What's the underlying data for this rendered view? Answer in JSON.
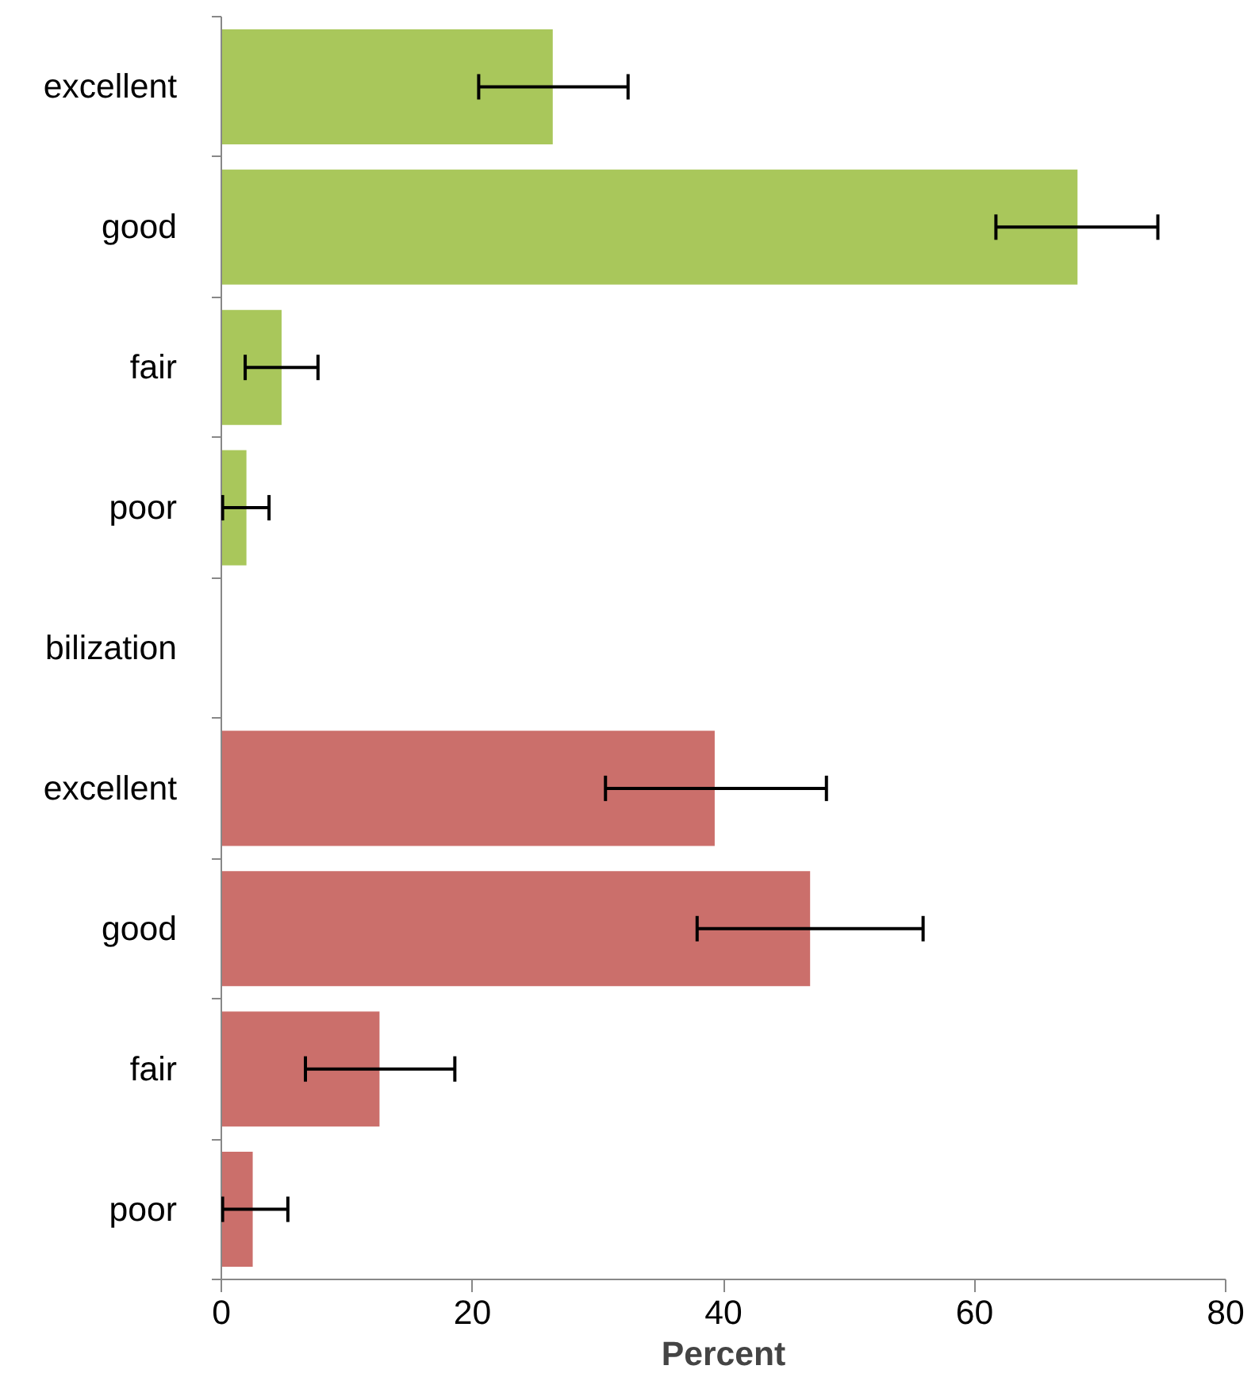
{
  "chart_data": {
    "type": "bar",
    "orientation": "horizontal",
    "xlabel": "Percent",
    "categories": [
      "excellent",
      "good",
      "fair",
      "poor",
      "bilization",
      "excellent",
      "good",
      "fair",
      "poor"
    ],
    "series": [
      {
        "color": "#a9c75b",
        "values": [
          26.4,
          68.2,
          4.8,
          2.0,
          null,
          null,
          null,
          null,
          null
        ],
        "errors": [
          [
            20.5,
            32.4
          ],
          [
            61.7,
            74.6
          ],
          [
            1.9,
            7.7
          ],
          [
            0.1,
            3.8
          ],
          null,
          null,
          null,
          null,
          null
        ]
      },
      {
        "color": "#cb6f6b",
        "values": [
          null,
          null,
          null,
          null,
          null,
          39.3,
          46.9,
          12.6,
          2.5
        ],
        "errors": [
          null,
          null,
          null,
          null,
          null,
          [
            30.6,
            48.2
          ],
          [
            37.9,
            55.9
          ],
          [
            6.7,
            18.6
          ],
          [
            0.1,
            5.3
          ]
        ]
      }
    ],
    "xlim": [
      0,
      80
    ],
    "xticks": [
      0,
      20,
      40,
      60,
      80
    ],
    "grid": false
  }
}
